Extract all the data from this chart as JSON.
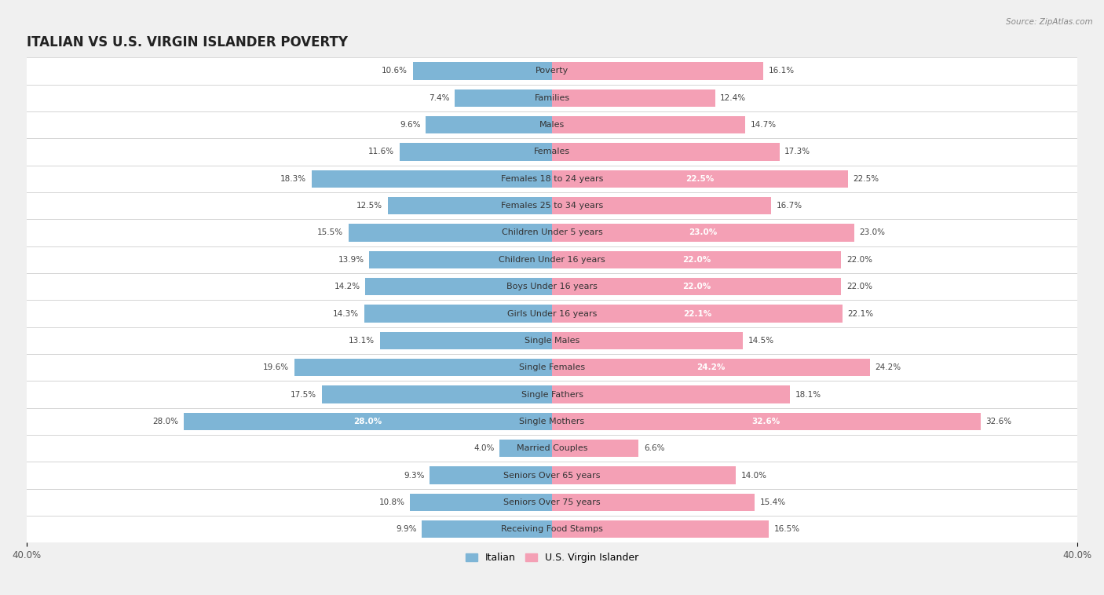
{
  "title": "ITALIAN VS U.S. VIRGIN ISLANDER POVERTY",
  "source": "Source: ZipAtlas.com",
  "categories": [
    "Poverty",
    "Families",
    "Males",
    "Females",
    "Females 18 to 24 years",
    "Females 25 to 34 years",
    "Children Under 5 years",
    "Children Under 16 years",
    "Boys Under 16 years",
    "Girls Under 16 years",
    "Single Males",
    "Single Females",
    "Single Fathers",
    "Single Mothers",
    "Married Couples",
    "Seniors Over 65 years",
    "Seniors Over 75 years",
    "Receiving Food Stamps"
  ],
  "italian_values": [
    10.6,
    7.4,
    9.6,
    11.6,
    18.3,
    12.5,
    15.5,
    13.9,
    14.2,
    14.3,
    13.1,
    19.6,
    17.5,
    28.0,
    4.0,
    9.3,
    10.8,
    9.9
  ],
  "virgin_islander_values": [
    16.1,
    12.4,
    14.7,
    17.3,
    22.5,
    16.7,
    23.0,
    22.0,
    22.0,
    22.1,
    14.5,
    24.2,
    18.1,
    32.6,
    6.6,
    14.0,
    15.4,
    16.5
  ],
  "italian_color": "#7eb5d6",
  "virgin_islander_color": "#f4a0b5",
  "italian_label": "Italian",
  "virgin_islander_label": "U.S. Virgin Islander",
  "xlim": 40.0,
  "background_color": "#f0f0f0",
  "row_color": "#ffffff",
  "bar_height": 0.65,
  "title_fontsize": 12,
  "label_fontsize": 8,
  "value_fontsize": 7.5,
  "axis_label_fontsize": 8.5,
  "inside_label_threshold": 22.0
}
